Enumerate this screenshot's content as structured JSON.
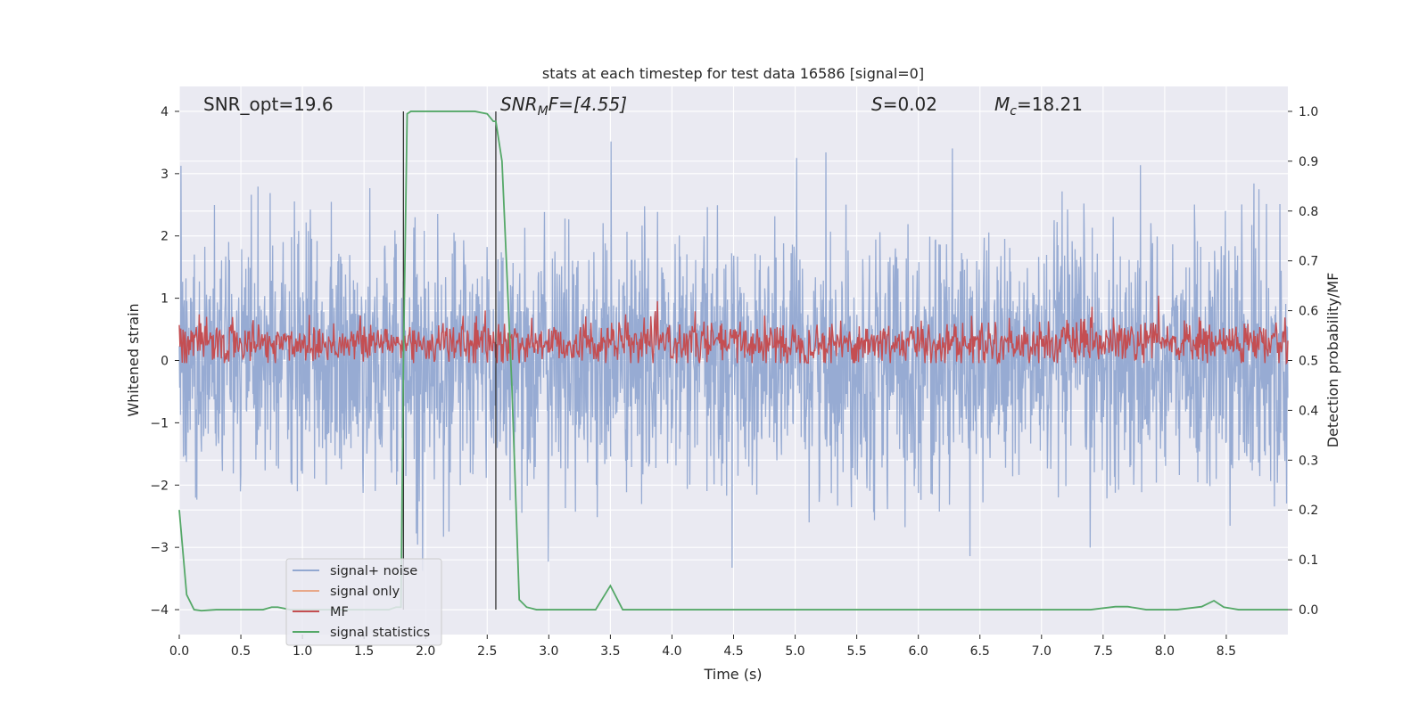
{
  "chart_data": {
    "type": "line",
    "title": "stats at each timestep for test data 16586 [signal=0]",
    "xlabel": "Time (s)",
    "ylabel_left": "Whitened strain",
    "ylabel_right": "Detection probability/MF",
    "xlim": [
      0.0,
      9.0
    ],
    "ylim_left": [
      -4.4,
      4.4
    ],
    "ylim_right": [
      -0.05,
      1.05
    ],
    "xticks": [
      "0.0",
      "0.5",
      "1.0",
      "1.5",
      "2.0",
      "2.5",
      "3.0",
      "3.5",
      "4.0",
      "4.5",
      "5.0",
      "5.5",
      "6.0",
      "6.5",
      "7.0",
      "7.5",
      "8.0",
      "8.5"
    ],
    "yticks_left": [
      "−4",
      "−3",
      "−2",
      "−1",
      "0",
      "1",
      "2",
      "3",
      "4"
    ],
    "yticks_right": [
      "0.0",
      "0.1",
      "0.2",
      "0.3",
      "0.4",
      "0.5",
      "0.6",
      "0.7",
      "0.8",
      "0.9",
      "1.0"
    ],
    "vlines_x": [
      1.82,
      2.57
    ],
    "annotations": {
      "snr_opt": "SNR_opt=19.6",
      "snr_mf_base": "SNR",
      "snr_mf_sub": "M",
      "snr_mf_rest": "F=[4.55]",
      "s_var": "S",
      "s_rest": "=0.02",
      "mc_base": "M",
      "mc_sub": "c",
      "mc_rest": "=18.21"
    },
    "legend": [
      "signal+ noise",
      "signal only",
      "MF",
      "signal statistics"
    ],
    "legend_loc": "lower-left",
    "series": [
      {
        "name": "signal+ noise",
        "axis": "left",
        "color": "#92a8d1",
        "kind": "dense noise",
        "sample_dt": 0.0034,
        "envelope_abs_max": 4.0
      },
      {
        "name": "signal only",
        "axis": "left",
        "color": "#e8a88a",
        "values": []
      },
      {
        "name": "MF",
        "axis": "right",
        "color": "#c44e52",
        "kind": "dense noise",
        "baseline": 0.535,
        "range": [
          0.495,
          0.63
        ],
        "peak_x": 7.95,
        "peak_y": 0.63
      },
      {
        "name": "signal statistics",
        "axis": "right",
        "color": "#55a868",
        "x": [
          0.0,
          0.06,
          0.12,
          0.18,
          0.3,
          0.5,
          0.68,
          0.75,
          0.8,
          0.9,
          1.2,
          1.5,
          1.7,
          1.76,
          1.8,
          1.82,
          1.85,
          1.88,
          1.92,
          2.0,
          2.2,
          2.4,
          2.5,
          2.55,
          2.57,
          2.62,
          2.7,
          2.76,
          2.82,
          2.9,
          3.2,
          3.38,
          3.5,
          3.6,
          3.65,
          4.0,
          5.0,
          6.0,
          7.0,
          7.4,
          7.6,
          7.7,
          7.85,
          8.1,
          8.3,
          8.4,
          8.48,
          8.6,
          9.0
        ],
        "y": [
          0.2,
          0.03,
          0.0,
          -0.002,
          0.0,
          0.0,
          0.0,
          0.005,
          0.005,
          0.0,
          0.0,
          0.0,
          0.0,
          0.005,
          0.005,
          0.5,
          0.995,
          1.0,
          1.0,
          1.0,
          1.0,
          1.0,
          0.995,
          0.98,
          0.98,
          0.9,
          0.45,
          0.02,
          0.005,
          0.0,
          0.0,
          0.0,
          0.048,
          0.0,
          0.0,
          0.0,
          0.0,
          0.0,
          0.0,
          0.0,
          0.006,
          0.006,
          0.0,
          0.0,
          0.006,
          0.018,
          0.005,
          0.0,
          0.0
        ]
      }
    ],
    "colors": {
      "plot_bg": "#eaeaf2",
      "grid": "#ffffff",
      "vline": "#333333",
      "legend_bg": "#eaeaf2",
      "legend_border": "#cccccc"
    }
  }
}
